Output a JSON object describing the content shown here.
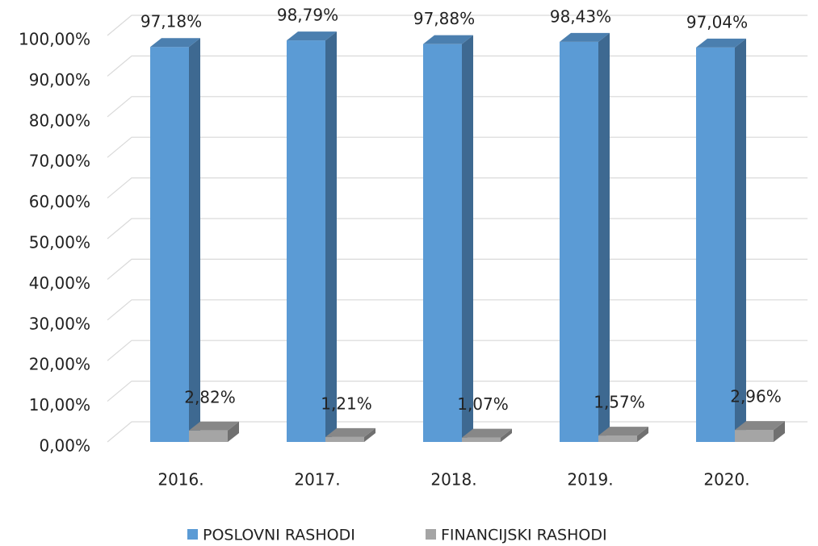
{
  "chart_data": {
    "type": "bar3d",
    "categories": [
      "2016.",
      "2017.",
      "2018.",
      "2019.",
      "2020."
    ],
    "series": [
      {
        "name": "POSLOVNI RASHODI",
        "color": "#5b9bd5",
        "values": [
          97.18,
          98.79,
          97.88,
          98.43,
          97.04
        ],
        "value_labels": [
          "97,18%",
          "98,79%",
          "97,88%",
          "98,43%",
          "97,04%"
        ]
      },
      {
        "name": "FINANCIJSKI RASHODI",
        "color": "#a5a5a5",
        "values": [
          2.82,
          1.21,
          1.07,
          1.57,
          2.96
        ],
        "value_labels": [
          "2,82%",
          "1,21%",
          "1,07%",
          "1,57%",
          "2,96%"
        ]
      }
    ],
    "ylim": [
      0,
      100
    ],
    "yticks": [
      {
        "value": 0,
        "label": "0,00%"
      },
      {
        "value": 10,
        "label": "10,00%"
      },
      {
        "value": 20,
        "label": "20,00%"
      },
      {
        "value": 30,
        "label": "30,00%"
      },
      {
        "value": 40,
        "label": "40,00%"
      },
      {
        "value": 50,
        "label": "50,00%"
      },
      {
        "value": 60,
        "label": "60,00%"
      },
      {
        "value": 70,
        "label": "70,00%"
      },
      {
        "value": 80,
        "label": "80,00%"
      },
      {
        "value": 90,
        "label": "90,00%"
      },
      {
        "value": 100,
        "label": "100,00%"
      }
    ],
    "grid": true,
    "legend": "bottom"
  }
}
